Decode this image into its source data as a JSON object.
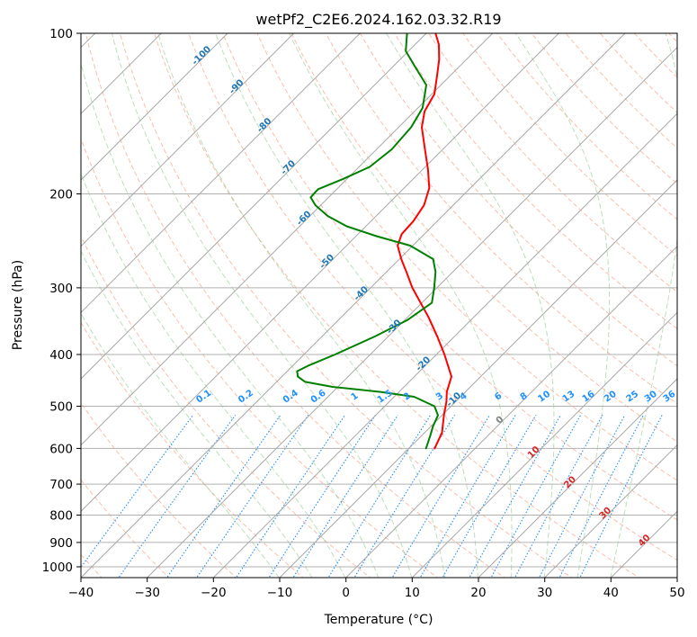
{
  "chart_data": {
    "type": "skew-t",
    "title": "wetPf2_C2E6.2024.162.03.32.R19",
    "xlabel": "Temperature (°C)",
    "ylabel": "Pressure (hPa)",
    "xlim": [
      -40,
      50
    ],
    "ylim_hpa": [
      1050,
      100
    ],
    "x_ticks": [
      -40,
      -30,
      -20,
      -10,
      0,
      10,
      20,
      30,
      40,
      50
    ],
    "x_tick_labels": [
      "−40",
      "−30",
      "−20",
      "−10",
      "0",
      "10",
      "20",
      "30",
      "40",
      "50"
    ],
    "y_ticks": [
      100,
      200,
      300,
      400,
      500,
      600,
      700,
      800,
      900,
      1000
    ],
    "y_tick_labels": [
      "100",
      "200",
      "300",
      "400",
      "500",
      "600",
      "700",
      "800",
      "900",
      "1000"
    ],
    "grid": true,
    "isotherm_labels": [
      {
        "value": -100,
        "text": "-100"
      },
      {
        "value": -90,
        "text": "-90"
      },
      {
        "value": -80,
        "text": "-80"
      },
      {
        "value": -70,
        "text": "-70"
      },
      {
        "value": -60,
        "text": "-60"
      },
      {
        "value": -50,
        "text": "-50"
      },
      {
        "value": -40,
        "text": "-40"
      },
      {
        "value": -30,
        "text": "-30"
      },
      {
        "value": -20,
        "text": "-20"
      },
      {
        "value": -10,
        "text": "-10"
      }
    ],
    "mixing_ratio_labels": [
      {
        "value": 0.1,
        "text": "0.1"
      },
      {
        "value": 0.2,
        "text": "0.2"
      },
      {
        "value": 0.4,
        "text": "0.4"
      },
      {
        "value": 0.6,
        "text": "0.6"
      },
      {
        "value": 1,
        "text": "1"
      },
      {
        "value": 1.5,
        "text": "1.5"
      },
      {
        "value": 2,
        "text": "2"
      },
      {
        "value": 3,
        "text": "3"
      },
      {
        "value": 4,
        "text": "4"
      },
      {
        "value": 6,
        "text": "6"
      },
      {
        "value": 8,
        "text": "8"
      },
      {
        "value": 10,
        "text": "10"
      },
      {
        "value": 13,
        "text": "13"
      },
      {
        "value": 16,
        "text": "16"
      },
      {
        "value": 20,
        "text": "20"
      },
      {
        "value": 25,
        "text": "25"
      },
      {
        "value": 30,
        "text": "30"
      },
      {
        "value": 36,
        "text": "36"
      }
    ],
    "zero_isotherm_label": {
      "value": 0,
      "text": "0"
    },
    "warm_isotherm_labels": [
      {
        "value": 10,
        "text": "10"
      },
      {
        "value": 20,
        "text": "20"
      },
      {
        "value": 30,
        "text": "30"
      },
      {
        "value": 40,
        "text": "40"
      }
    ],
    "series": [
      {
        "name": "temperature",
        "color": "#ff0000",
        "points": [
          {
            "p": 600,
            "t": -6.1
          },
          {
            "p": 560,
            "t": -7.4
          },
          {
            "p": 520,
            "t": -9.7
          },
          {
            "p": 490,
            "t": -11.4
          },
          {
            "p": 470,
            "t": -12.8
          },
          {
            "p": 440,
            "t": -14.4
          },
          {
            "p": 400,
            "t": -18.8
          },
          {
            "p": 370,
            "t": -22.6
          },
          {
            "p": 340,
            "t": -26.9
          },
          {
            "p": 300,
            "t": -33.7
          },
          {
            "p": 280,
            "t": -37.0
          },
          {
            "p": 265,
            "t": -39.7
          },
          {
            "p": 250,
            "t": -42.3
          },
          {
            "p": 238,
            "t": -43.4
          },
          {
            "p": 225,
            "t": -43.6
          },
          {
            "p": 210,
            "t": -44.4
          },
          {
            "p": 195,
            "t": -46.2
          },
          {
            "p": 180,
            "t": -49.2
          },
          {
            "p": 165,
            "t": -52.7
          },
          {
            "p": 150,
            "t": -56.5
          },
          {
            "p": 140,
            "t": -58.5
          },
          {
            "p": 130,
            "t": -59.6
          },
          {
            "p": 120,
            "t": -62.0
          },
          {
            "p": 112,
            "t": -64.1
          },
          {
            "p": 105,
            "t": -66.4
          },
          {
            "p": 100,
            "t": -68.6
          }
        ]
      },
      {
        "name": "dewpoint",
        "color": "#008000",
        "points": [
          {
            "p": 600,
            "t": -7.4
          },
          {
            "p": 570,
            "t": -8.6
          },
          {
            "p": 545,
            "t": -9.7
          },
          {
            "p": 520,
            "t": -10.6
          },
          {
            "p": 500,
            "t": -12.5
          },
          {
            "p": 480,
            "t": -17.0
          },
          {
            "p": 470,
            "t": -22.8
          },
          {
            "p": 460,
            "t": -30.8
          },
          {
            "p": 450,
            "t": -35.7
          },
          {
            "p": 440,
            "t": -37.6
          },
          {
            "p": 430,
            "t": -38.5
          },
          {
            "p": 420,
            "t": -37.7
          },
          {
            "p": 400,
            "t": -35.3
          },
          {
            "p": 370,
            "t": -32.0
          },
          {
            "p": 345,
            "t": -29.6
          },
          {
            "p": 320,
            "t": -28.5
          },
          {
            "p": 300,
            "t": -30.4
          },
          {
            "p": 280,
            "t": -32.6
          },
          {
            "p": 265,
            "t": -34.9
          },
          {
            "p": 250,
            "t": -40.4
          },
          {
            "p": 240,
            "t": -46.9
          },
          {
            "p": 230,
            "t": -52.9
          },
          {
            "p": 220,
            "t": -57.3
          },
          {
            "p": 210,
            "t": -60.8
          },
          {
            "p": 203,
            "t": -62.7
          },
          {
            "p": 196,
            "t": -62.8
          },
          {
            "p": 188,
            "t": -60.7
          },
          {
            "p": 178,
            "t": -58.4
          },
          {
            "p": 165,
            "t": -57.7
          },
          {
            "p": 150,
            "t": -58.1
          },
          {
            "p": 138,
            "t": -59.3
          },
          {
            "p": 125,
            "t": -62.2
          },
          {
            "p": 115,
            "t": -66.9
          },
          {
            "p": 108,
            "t": -70.4
          },
          {
            "p": 100,
            "t": -72.9
          }
        ]
      }
    ]
  }
}
